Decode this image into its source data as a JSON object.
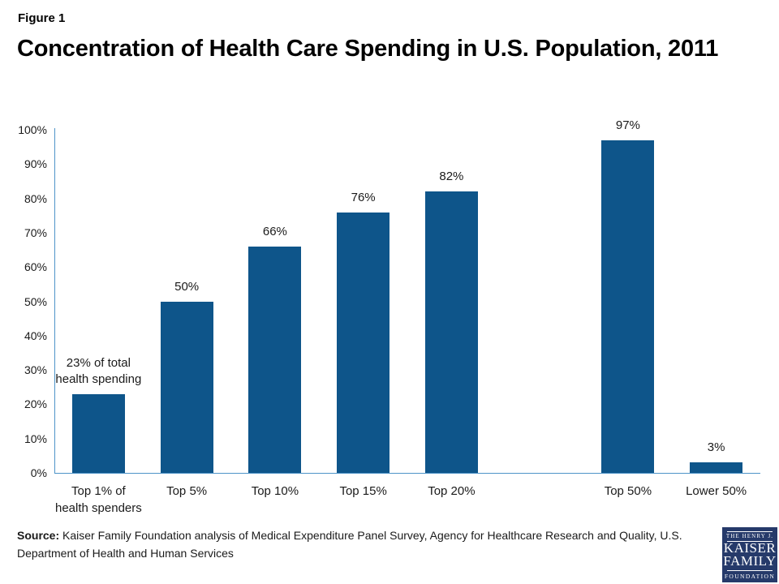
{
  "header": {
    "figure_label": "Figure 1",
    "title": "Concentration of Health Care Spending in U.S. Population, 2011"
  },
  "chart_data": {
    "type": "bar",
    "title": "Concentration of Health Care Spending in U.S. Population, 2011",
    "categories": [
      "Top 1% of\nhealth spenders",
      "Top 5%",
      "Top 10%",
      "Top 15%",
      "Top 20%",
      "Top 50%",
      "Lower 50%"
    ],
    "values": [
      23,
      50,
      66,
      76,
      82,
      97,
      3
    ],
    "bar_labels": [
      "23% of total\nhealth spending",
      "50%",
      "66%",
      "76%",
      "82%",
      "97%",
      "3%"
    ],
    "slot_indices": [
      0,
      1,
      2,
      3,
      4,
      6,
      7
    ],
    "num_slots": 8,
    "xlabel": "",
    "ylabel": "",
    "ylim": [
      0,
      100
    ],
    "ytick_step": 10,
    "ytick_suffix": "%",
    "grid": false,
    "legend": false,
    "bar_color": "#0e558a",
    "axis_color": "#4e94c8"
  },
  "footer": {
    "source_label": "Source:",
    "source_text": " Kaiser Family Foundation analysis of Medical Expenditure Panel Survey, Agency for Healthcare Research and Quality, U.S. Department of Health and Human Services"
  },
  "logo": {
    "bg_color": "#263a6a",
    "line1": "THE HENRY J.",
    "line2": "KAISER",
    "line3": "FAMILY",
    "line4": "FOUNDATION"
  }
}
